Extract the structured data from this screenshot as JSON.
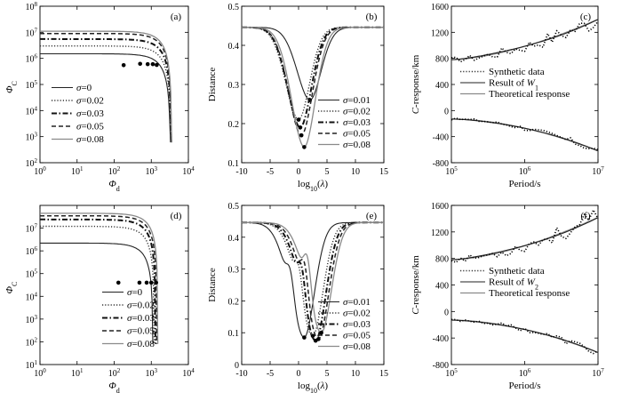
{
  "chart_data": [
    {
      "id": "a",
      "panel_label": "(a)",
      "type": "line",
      "xlabel": "Φd",
      "ylabel": "ΦC",
      "xscale": "log",
      "yscale": "log",
      "xlim": [
        1,
        10000
      ],
      "ylim": [
        100,
        100000000
      ],
      "xticks": [
        "10^0",
        "10^1",
        "10^2",
        "10^3",
        "10^4"
      ],
      "yticks": [
        "10^2",
        "10^3",
        "10^4",
        "10^5",
        "10^6",
        "10^7",
        "10^8"
      ],
      "legend_position": "lower-left",
      "series": [
        {
          "name": "σ=0",
          "style": "solid",
          "plateau": 1500000,
          "end": 3300,
          "marker": [
            180,
            550000
          ]
        },
        {
          "name": "σ=0.02",
          "style": "dotted",
          "plateau": 3000000,
          "end": 3400,
          "marker": [
            500,
            620000
          ]
        },
        {
          "name": "σ=0.03",
          "style": "dashdot",
          "plateau": 5500000,
          "end": 3450,
          "marker": [
            800,
            600000
          ]
        },
        {
          "name": "σ=0.05",
          "style": "dashed",
          "plateau": 9000000,
          "end": 3500,
          "marker": [
            1100,
            600000
          ]
        },
        {
          "name": "σ=0.08",
          "style": "gray",
          "plateau": 11000000,
          "end": 3550,
          "marker": [
            1400,
            560000
          ]
        }
      ]
    },
    {
      "id": "b",
      "panel_label": "(b)",
      "type": "line",
      "xlabel": "log10(λ)",
      "ylabel": "Distance",
      "xlim": [
        -10,
        15
      ],
      "ylim": [
        0.1,
        0.5
      ],
      "xticks": [
        "-10",
        "-5",
        "0",
        "5",
        "10",
        "15"
      ],
      "yticks": [
        "0.1",
        "0.2",
        "0.3",
        "0.4",
        "0.5"
      ],
      "legend_position": "lower-right",
      "series": [
        {
          "name": "σ=0.01",
          "style": "solid",
          "min_x": 2.0,
          "min_y": 0.26
        },
        {
          "name": "σ=0.02",
          "style": "dotted",
          "min_x": 0.0,
          "min_y": 0.21
        },
        {
          "name": "σ=0.03",
          "style": "dashdot",
          "min_x": 0.3,
          "min_y": 0.19
        },
        {
          "name": "σ=0.05",
          "style": "dashed",
          "min_x": 0.5,
          "min_y": 0.17
        },
        {
          "name": "σ=0.08",
          "style": "gray",
          "min_x": 1.0,
          "min_y": 0.14
        }
      ]
    },
    {
      "id": "c",
      "panel_label": "(c)",
      "type": "line",
      "xlabel": "Period/s",
      "ylabel": "C-response/km",
      "xscale": "log",
      "xlim": [
        100000,
        10000000
      ],
      "ylim": [
        -800,
        1600
      ],
      "xticks": [
        "10^5",
        "10^6",
        "10^7"
      ],
      "yticks": [
        "-800",
        "-400",
        "0",
        "400",
        "800",
        "1200",
        "1600"
      ],
      "legend_position": "middle",
      "legend": [
        "Synthetic data",
        "Result of W1",
        "Theoretical response"
      ],
      "upper_curve": {
        "start": 780,
        "end": 1400
      },
      "lower_curve": {
        "start": -130,
        "end": -620
      }
    },
    {
      "id": "d",
      "panel_label": "(d)",
      "type": "line",
      "xlabel": "Φd",
      "ylabel": "ΦC",
      "xscale": "log",
      "yscale": "log",
      "xlim": [
        1,
        10000
      ],
      "ylim": [
        10,
        100000000
      ],
      "xticks": [
        "10^0",
        "10^1",
        "10^2",
        "10^3",
        "10^4"
      ],
      "yticks": [
        "10^1",
        "10^2",
        "10^3",
        "10^4",
        "10^5",
        "10^6",
        "10^7"
      ],
      "legend_position": "lower-right",
      "series": [
        {
          "name": "σ=0",
          "style": "solid",
          "plateau": 2200000,
          "end": 1100,
          "marker": [
            130,
            40000
          ]
        },
        {
          "name": "σ=0.02",
          "style": "dotted",
          "plateau": 12000000,
          "end": 1200,
          "marker": [
            480,
            40000
          ]
        },
        {
          "name": "σ=0.03",
          "style": "dashdot",
          "plateau": 24000000,
          "end": 1300,
          "marker": [
            750,
            40000
          ]
        },
        {
          "name": "σ=0.05",
          "style": "dashed",
          "plateau": 35000000,
          "end": 1400,
          "marker": [
            1000,
            40000
          ]
        },
        {
          "name": "σ=0.08",
          "style": "gray",
          "plateau": 45000000,
          "end": 1500,
          "marker": [
            1350,
            40000
          ]
        }
      ]
    },
    {
      "id": "e",
      "panel_label": "(e)",
      "type": "line",
      "xlabel": "log10(λ)",
      "ylabel": "Distance",
      "xlim": [
        -10,
        15
      ],
      "ylim": [
        0.0,
        0.5
      ],
      "xticks": [
        "-10",
        "-5",
        "0",
        "5",
        "10",
        "15"
      ],
      "yticks": [
        "0",
        "0.1",
        "0.2",
        "0.3",
        "0.4",
        "0.5"
      ],
      "legend_position": "lower-right",
      "series": [
        {
          "name": "σ=0.01",
          "style": "solid",
          "min_x": 1.0,
          "min_y": 0.085
        },
        {
          "name": "σ=0.02",
          "style": "dotted",
          "min_x": 2.5,
          "min_y": 0.09
        },
        {
          "name": "σ=0.03",
          "style": "dashdot",
          "min_x": 3.0,
          "min_y": 0.075
        },
        {
          "name": "σ=0.05",
          "style": "dashed",
          "min_x": 3.5,
          "min_y": 0.08
        },
        {
          "name": "σ=0.08",
          "style": "gray",
          "min_x": 4.0,
          "min_y": 0.1
        }
      ]
    },
    {
      "id": "f",
      "panel_label": "(f)",
      "type": "line",
      "xlabel": "Period/s",
      "ylabel": "C-response/km",
      "xscale": "log",
      "xlim": [
        100000,
        10000000
      ],
      "ylim": [
        -800,
        1600
      ],
      "xticks": [
        "10^5",
        "10^6",
        "10^7"
      ],
      "yticks": [
        "-800",
        "-400",
        "0",
        "400",
        "800",
        "1200",
        "1600"
      ],
      "legend_position": "middle",
      "legend": [
        "Synthetic data",
        "Result of W2",
        "Theoretical response"
      ],
      "upper_curve": {
        "start": 780,
        "end": 1420
      },
      "lower_curve": {
        "start": -130,
        "end": -620
      }
    }
  ]
}
